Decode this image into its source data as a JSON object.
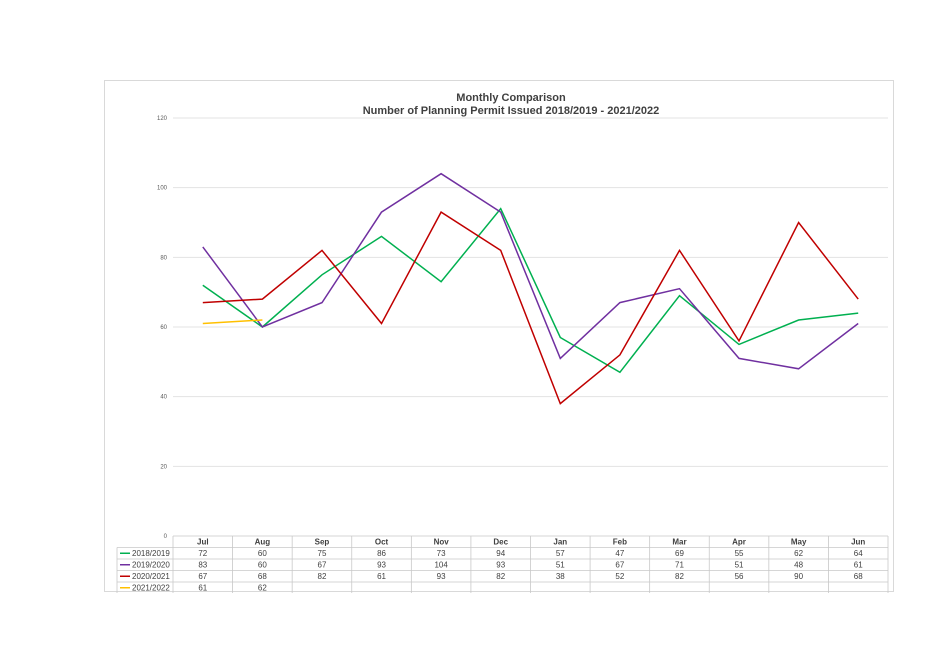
{
  "chart_data": {
    "type": "line",
    "title": "Monthly Comparison",
    "subtitle": "Number of Planning Permit Issued 2018/2019 - 2021/2022",
    "categories": [
      "Jul",
      "Aug",
      "Sep",
      "Oct",
      "Nov",
      "Dec",
      "Jan",
      "Feb",
      "Mar",
      "Apr",
      "May",
      "Jun"
    ],
    "ylim": [
      0,
      120
    ],
    "yticks": [
      0,
      20,
      40,
      60,
      80,
      100,
      120
    ],
    "grid": true,
    "legend": "data-table",
    "series": [
      {
        "name": "2018/2019",
        "color": "#00b050",
        "values": [
          72,
          60,
          75,
          86,
          73,
          94,
          57,
          47,
          69,
          55,
          62,
          64
        ]
      },
      {
        "name": "2019/2020",
        "color": "#7030a0",
        "values": [
          83,
          60,
          67,
          93,
          104,
          93,
          51,
          67,
          71,
          51,
          48,
          61
        ]
      },
      {
        "name": "2020/2021",
        "color": "#c00000",
        "values": [
          67,
          68,
          82,
          61,
          93,
          82,
          38,
          52,
          82,
          56,
          90,
          68
        ]
      },
      {
        "name": "2021/2022",
        "color": "#ffc000",
        "values": [
          61,
          62,
          null,
          null,
          null,
          null,
          null,
          null,
          null,
          null,
          null,
          null
        ]
      }
    ]
  }
}
